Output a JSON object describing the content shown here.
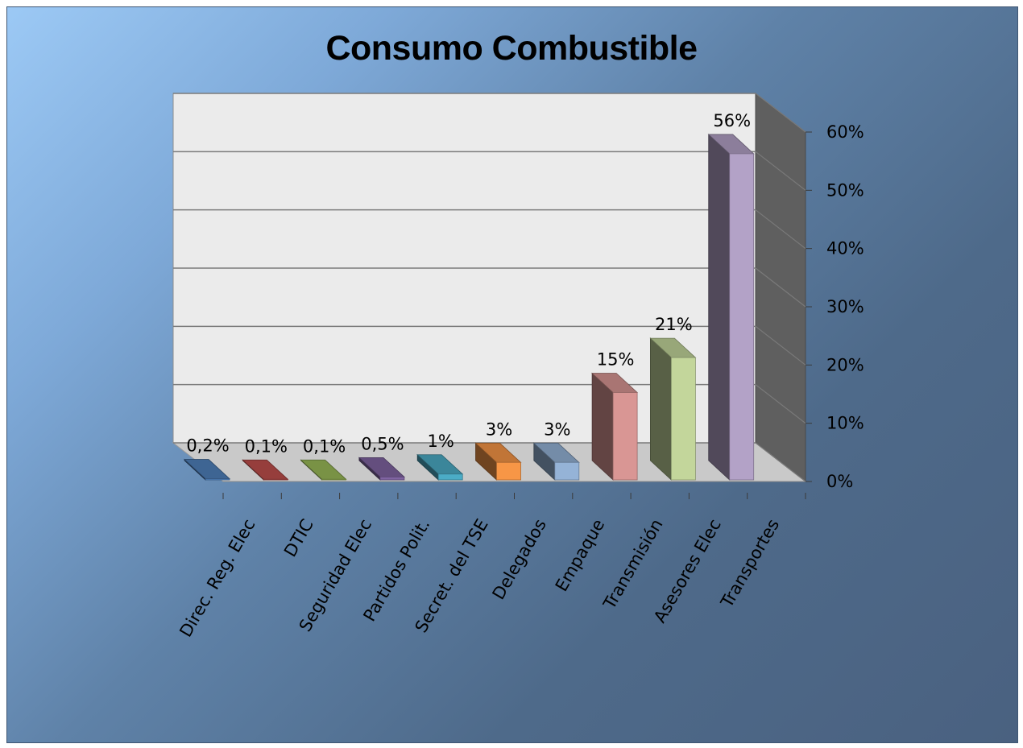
{
  "chart_data": {
    "type": "bar",
    "title": "Consumo Combustible",
    "categories": [
      "Direc. Reg. Elec",
      "DTIC",
      "Seguridad Elec",
      "Partidos Polit.",
      "Secret. del TSE",
      "Delegados",
      "Empaque",
      "Transmisión",
      "Asesores Elec",
      "Transportes"
    ],
    "values": [
      0.2,
      0.1,
      0.1,
      0.5,
      1,
      3,
      3,
      15,
      21,
      56
    ],
    "data_labels": [
      "0,2%",
      "0,1%",
      "0,1%",
      "0,5%",
      "1%",
      "3%",
      "3%",
      "15%",
      "21%",
      "56%"
    ],
    "yticks": [
      "0%",
      "10%",
      "20%",
      "30%",
      "40%",
      "50%",
      "60%"
    ],
    "ylim": [
      0,
      60
    ],
    "grid": true,
    "legend": "none",
    "bar_colors": [
      "#4f81bd",
      "#c0504d",
      "#9bbb59",
      "#8064a2",
      "#4bacc6",
      "#f79646",
      "#95b3d7",
      "#d99694",
      "#c3d69b",
      "#b3a2c7"
    ]
  }
}
